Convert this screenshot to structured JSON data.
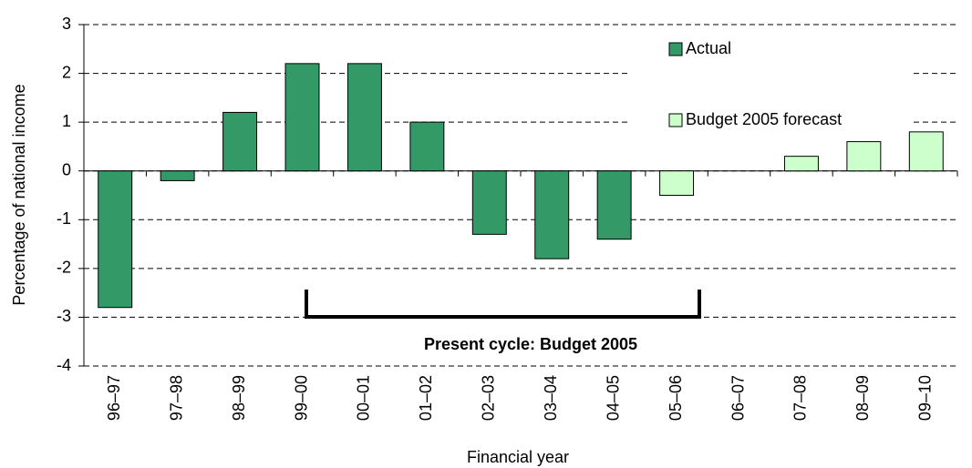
{
  "chart_data": {
    "type": "bar",
    "categories": [
      "96–97",
      "97–98",
      "98–99",
      "99–00",
      "00–01",
      "01–02",
      "02–03",
      "03–04",
      "04–05",
      "05–06",
      "06–07",
      "07–08",
      "08–09",
      "09–10"
    ],
    "series": [
      {
        "name": "Actual",
        "color": "#339966",
        "values": [
          -2.8,
          -0.2,
          1.2,
          2.2,
          2.2,
          1.0,
          -1.3,
          -1.8,
          -1.4,
          null,
          null,
          null,
          null,
          null
        ]
      },
      {
        "name": "Budget 2005 forecast",
        "color": "#ccffcc",
        "values": [
          null,
          null,
          null,
          null,
          null,
          null,
          null,
          null,
          null,
          -0.5,
          0,
          0.3,
          0.6,
          0.8
        ]
      }
    ],
    "ylim": [
      -4,
      3
    ],
    "yticks": [
      -4,
      -3,
      -2,
      -1,
      0,
      1,
      2,
      3
    ],
    "y_label": "Percentage of national income",
    "x_label": "Financial year",
    "annotation": "Present cycle: Budget 2005",
    "grid": true,
    "legend": "upper right"
  }
}
